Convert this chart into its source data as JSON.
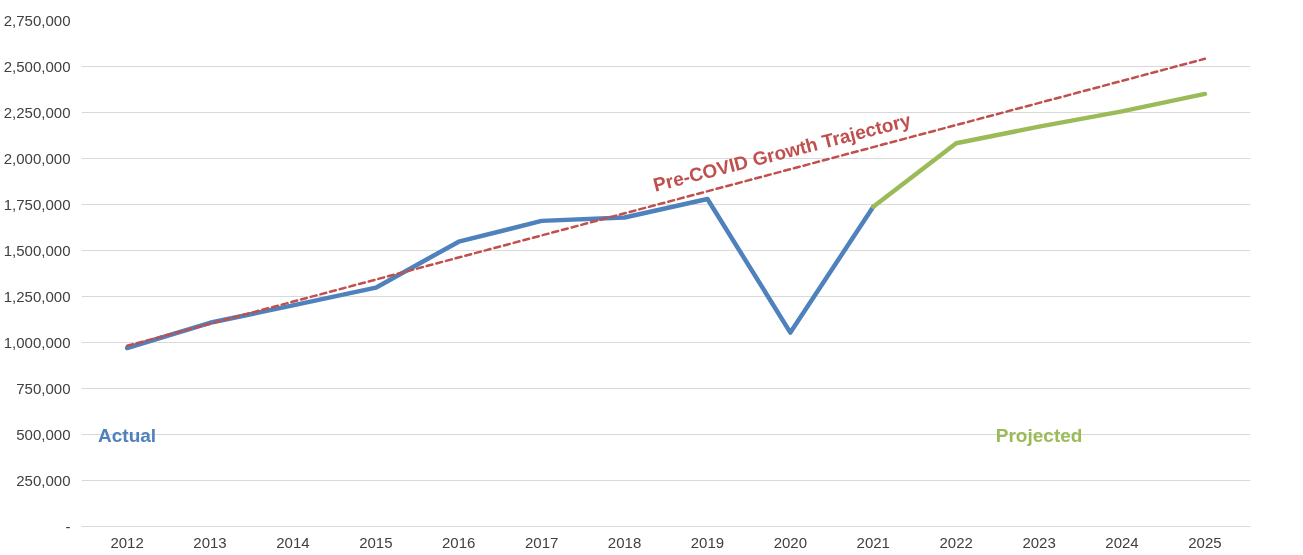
{
  "chart_data": {
    "type": "line",
    "xlim": [
      2011.45,
      2025.55
    ],
    "xticks": [
      2012,
      2013,
      2014,
      2015,
      2016,
      2017,
      2018,
      2019,
      2020,
      2021,
      2022,
      2023,
      2024,
      2025
    ],
    "ylim": [
      0,
      2750000
    ],
    "yticks": [
      {
        "value": 0,
        "label": "-"
      },
      {
        "value": 250000,
        "label": "250,000"
      },
      {
        "value": 500000,
        "label": "500,000"
      },
      {
        "value": 750000,
        "label": "750,000"
      },
      {
        "value": 1000000,
        "label": "1,000,000"
      },
      {
        "value": 1250000,
        "label": "1,250,000"
      },
      {
        "value": 1500000,
        "label": "1,500,000"
      },
      {
        "value": 1750000,
        "label": "1,750,000"
      },
      {
        "value": 2000000,
        "label": "2,000,000"
      },
      {
        "value": 2250000,
        "label": "2,250,000"
      },
      {
        "value": 2500000,
        "label": "2,500,000"
      },
      {
        "value": 2750000,
        "label": "2,750,000"
      }
    ],
    "grid": "y",
    "legend": false,
    "marker": "none",
    "series": [
      {
        "name": "Actual",
        "color": "#4f81bd",
        "x": [
          2012,
          2013,
          2014,
          2015,
          2016,
          2017,
          2018,
          2019,
          2020,
          2021
        ],
        "values": [
          970000,
          1107000,
          1202000,
          1298000,
          1548000,
          1661000,
          1679000,
          1780000,
          1054000,
          1738000
        ]
      },
      {
        "name": "Projected",
        "color": "#9bbb59",
        "x": [
          2021,
          2022,
          2023,
          2024,
          2025
        ],
        "values": [
          1738000,
          2083000,
          2173000,
          2256000,
          2351000
        ]
      },
      {
        "name": "Pre-COVID Growth Trajectory",
        "color": "#c0504d",
        "line_style": "dashed",
        "x": [
          2012,
          2025
        ],
        "values": [
          982000,
          2542000
        ]
      }
    ]
  }
}
